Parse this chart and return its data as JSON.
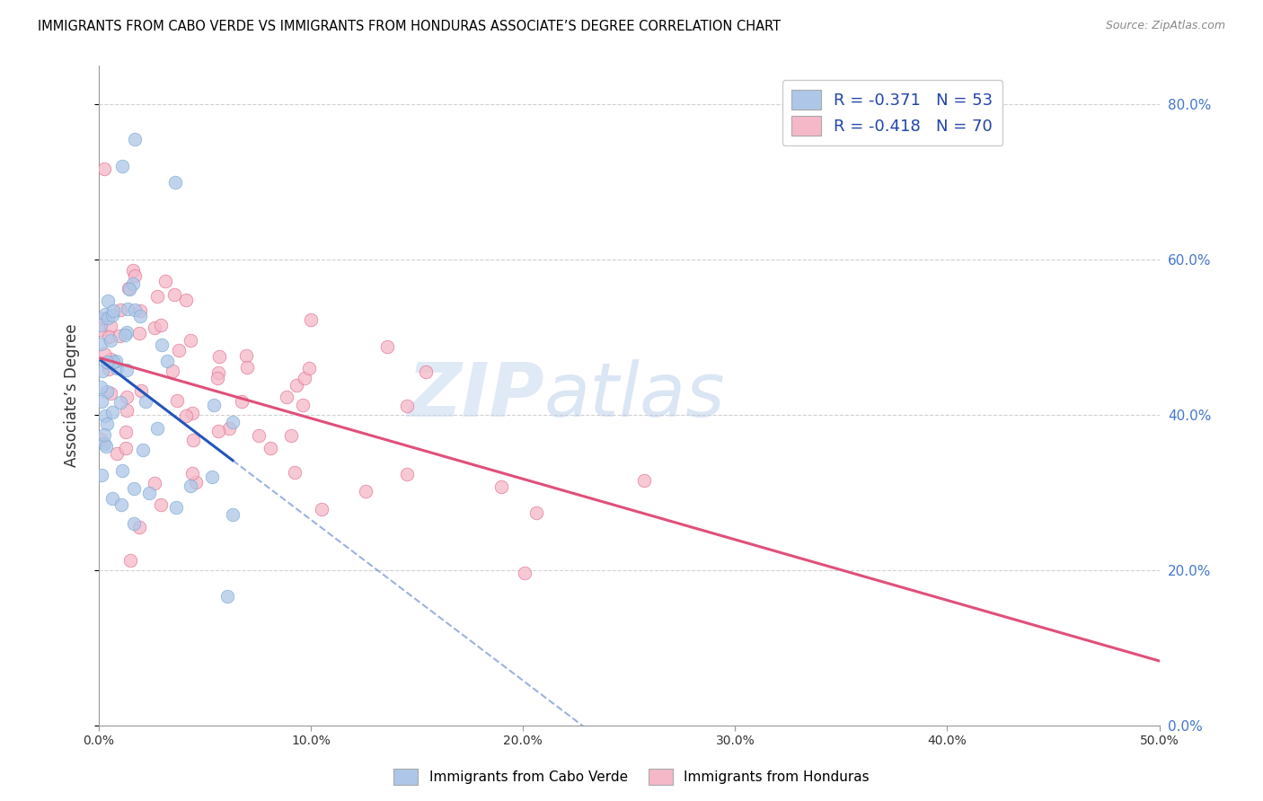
{
  "title": "IMMIGRANTS FROM CABO VERDE VS IMMIGRANTS FROM HONDURAS ASSOCIATE’S DEGREE CORRELATION CHART",
  "source": "Source: ZipAtlas.com",
  "ylabel": "Associate’s Degree",
  "xlim": [
    0.0,
    0.5
  ],
  "ylim": [
    0.0,
    0.85
  ],
  "yticks": [
    0.0,
    0.2,
    0.4,
    0.6,
    0.8
  ],
  "ytick_labels": [
    "0.0%",
    "20.0%",
    "40.0%",
    "60.0%",
    "80.0%"
  ],
  "xticks": [
    0.0,
    0.1,
    0.2,
    0.3,
    0.4,
    0.5
  ],
  "xtick_labels": [
    "0.0%",
    "10.0%",
    "20.0%",
    "30.0%",
    "40.0%",
    "50.0%"
  ],
  "watermark_zip": "ZIP",
  "watermark_atlas": "atlas",
  "cabo_verde_color": "#aec6e8",
  "cabo_verde_edge": "#7aaad0",
  "honduras_color": "#f5b8c8",
  "honduras_edge": "#e07090",
  "cabo_verde_line_color": "#2255bb",
  "honduras_line_color": "#e0507a",
  "cabo_verde_r": -0.371,
  "cabo_verde_n": 53,
  "honduras_r": -0.418,
  "honduras_n": 70,
  "grid_color": "#cccccc",
  "background_color": "#ffffff",
  "legend_label_cv": "R = -0.371   N = 53",
  "legend_label_hn": "R = -0.418   N = 70",
  "bottom_legend_cv": "Immigrants from Cabo Verde",
  "bottom_legend_hn": "Immigrants from Honduras"
}
